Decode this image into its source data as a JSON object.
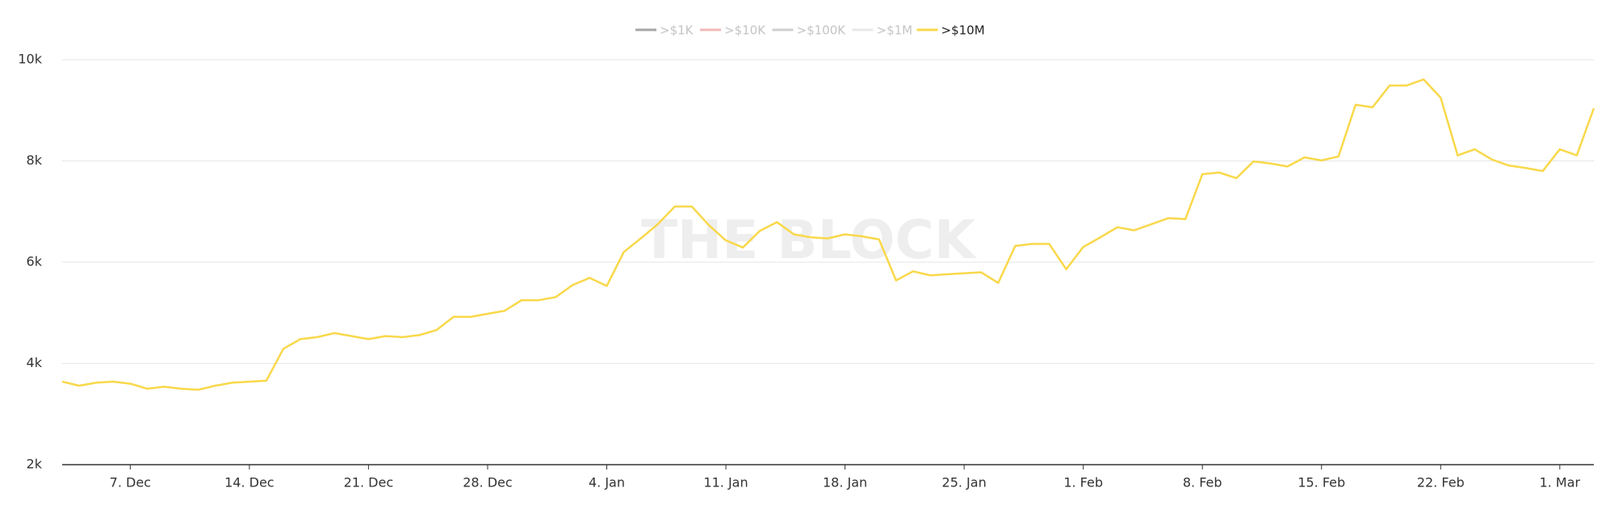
{
  "chart_data": {
    "type": "line",
    "watermark": "THE BLOCK",
    "categories": [
      null,
      null,
      null,
      null,
      "7. Dec",
      null,
      null,
      null,
      null,
      null,
      null,
      "14. Dec",
      null,
      null,
      null,
      null,
      null,
      null,
      "21. Dec",
      null,
      null,
      null,
      null,
      null,
      null,
      "28. Dec",
      null,
      null,
      null,
      null,
      null,
      null,
      "4. Jan",
      null,
      null,
      null,
      null,
      null,
      null,
      "11. Jan",
      null,
      null,
      null,
      null,
      null,
      null,
      "18. Jan",
      null,
      null,
      null,
      null,
      null,
      null,
      "25. Jan",
      null,
      null,
      null,
      null,
      null,
      null,
      "1. Feb",
      null,
      null,
      null,
      null,
      null,
      null,
      "8. Feb",
      null,
      null,
      null,
      null,
      null,
      null,
      "15. Feb",
      null,
      null,
      null,
      null,
      null,
      null,
      "22. Feb",
      null,
      null,
      null,
      null,
      null,
      null,
      "1. Mar",
      null,
      null
    ],
    "series": [
      {
        "name": ">$1K",
        "color": "#a6a6a6",
        "visible": false,
        "values": [
          null,
          null,
          null,
          null,
          null,
          null,
          null,
          null,
          null,
          null,
          null,
          null,
          null,
          null,
          null,
          null,
          null,
          null,
          null,
          null,
          null,
          null,
          null,
          null,
          null,
          null,
          null,
          null,
          null,
          null,
          null,
          null,
          null,
          null,
          null,
          null,
          null,
          null,
          null,
          null,
          null,
          null,
          null,
          null,
          null,
          null,
          null,
          null,
          null,
          null,
          null,
          null,
          null,
          null,
          null,
          null,
          null,
          null,
          null,
          null,
          null,
          null,
          null,
          null,
          null,
          null,
          null,
          null,
          null,
          null,
          null,
          null,
          null,
          null,
          null,
          null,
          null,
          null,
          null,
          null,
          null,
          null,
          null,
          null,
          null,
          null,
          null,
          null,
          null,
          null,
          null
        ]
      },
      {
        "name": ">$10K",
        "color": "#f2b8b8",
        "visible": false,
        "values": [
          null,
          null,
          null,
          null,
          null,
          null,
          null,
          null,
          null,
          null,
          null,
          null,
          null,
          null,
          null,
          null,
          null,
          null,
          null,
          null,
          null,
          null,
          null,
          null,
          null,
          null,
          null,
          null,
          null,
          null,
          null,
          null,
          null,
          null,
          null,
          null,
          null,
          null,
          null,
          null,
          null,
          null,
          null,
          null,
          null,
          null,
          null,
          null,
          null,
          null,
          null,
          null,
          null,
          null,
          null,
          null,
          null,
          null,
          null,
          null,
          null,
          null,
          null,
          null,
          null,
          null,
          null,
          null,
          null,
          null,
          null,
          null,
          null,
          null,
          null,
          null,
          null,
          null,
          null,
          null,
          null,
          null,
          null,
          null,
          null,
          null,
          null,
          null,
          null,
          null,
          null
        ]
      },
      {
        "name": ">$100K",
        "color": "#cfcfcf",
        "visible": false,
        "values": [
          null,
          null,
          null,
          null,
          null,
          null,
          null,
          null,
          null,
          null,
          null,
          null,
          null,
          null,
          null,
          null,
          null,
          null,
          null,
          null,
          null,
          null,
          null,
          null,
          null,
          null,
          null,
          null,
          null,
          null,
          null,
          null,
          null,
          null,
          null,
          null,
          null,
          null,
          null,
          null,
          null,
          null,
          null,
          null,
          null,
          null,
          null,
          null,
          null,
          null,
          null,
          null,
          null,
          null,
          null,
          null,
          null,
          null,
          null,
          null,
          null,
          null,
          null,
          null,
          null,
          null,
          null,
          null,
          null,
          null,
          null,
          null,
          null,
          null,
          null,
          null,
          null,
          null,
          null,
          null,
          null,
          null,
          null,
          null,
          null,
          null,
          null,
          null,
          null,
          null,
          null
        ]
      },
      {
        "name": ">$1M",
        "color": "#e8e8e8",
        "visible": false,
        "values": [
          null,
          null,
          null,
          null,
          null,
          null,
          null,
          null,
          null,
          null,
          null,
          null,
          null,
          null,
          null,
          null,
          null,
          null,
          null,
          null,
          null,
          null,
          null,
          null,
          null,
          null,
          null,
          null,
          null,
          null,
          null,
          null,
          null,
          null,
          null,
          null,
          null,
          null,
          null,
          null,
          null,
          null,
          null,
          null,
          null,
          null,
          null,
          null,
          null,
          null,
          null,
          null,
          null,
          null,
          null,
          null,
          null,
          null,
          null,
          null,
          null,
          null,
          null,
          null,
          null,
          null,
          null,
          null,
          null,
          null,
          null,
          null,
          null,
          null,
          null,
          null,
          null,
          null,
          null,
          null,
          null,
          null,
          null,
          null,
          null,
          null,
          null,
          null,
          null,
          null,
          null
        ]
      },
      {
        "name": ">$10M",
        "color": "#f9d84a",
        "visible": true,
        "values": [
          3640,
          3560,
          3620,
          3640,
          3600,
          3500,
          3540,
          3500,
          3480,
          3560,
          3620,
          3640,
          3660,
          4290,
          4480,
          4520,
          4600,
          4540,
          4480,
          4540,
          4520,
          4560,
          4660,
          4920,
          4920,
          4980,
          5040,
          5250,
          5250,
          5310,
          5550,
          5690,
          5530,
          6200,
          6470,
          6750,
          7100,
          7100,
          6730,
          6430,
          6290,
          6620,
          6790,
          6550,
          6490,
          6470,
          6550,
          6510,
          6450,
          5640,
          5820,
          5740,
          5760,
          5780,
          5800,
          5590,
          6320,
          6360,
          6360,
          5860,
          6300,
          6490,
          6690,
          6630,
          6750,
          6870,
          6850,
          7740,
          7770,
          7660,
          7990,
          7950,
          7890,
          8070,
          8010,
          8090,
          9110,
          9060,
          9490,
          9490,
          9610,
          9250,
          8110,
          8230,
          8030,
          7910,
          7860,
          7800,
          8230,
          8110,
          9040
        ]
      }
    ],
    "ylim": [
      2000,
      10000
    ],
    "yticks": [
      {
        "value": 2000,
        "label": "2k"
      },
      {
        "value": 4000,
        "label": "4k"
      },
      {
        "value": 6000,
        "label": "6k"
      },
      {
        "value": 8000,
        "label": "8k"
      },
      {
        "value": 10000,
        "label": "10k"
      }
    ],
    "grid": true
  }
}
